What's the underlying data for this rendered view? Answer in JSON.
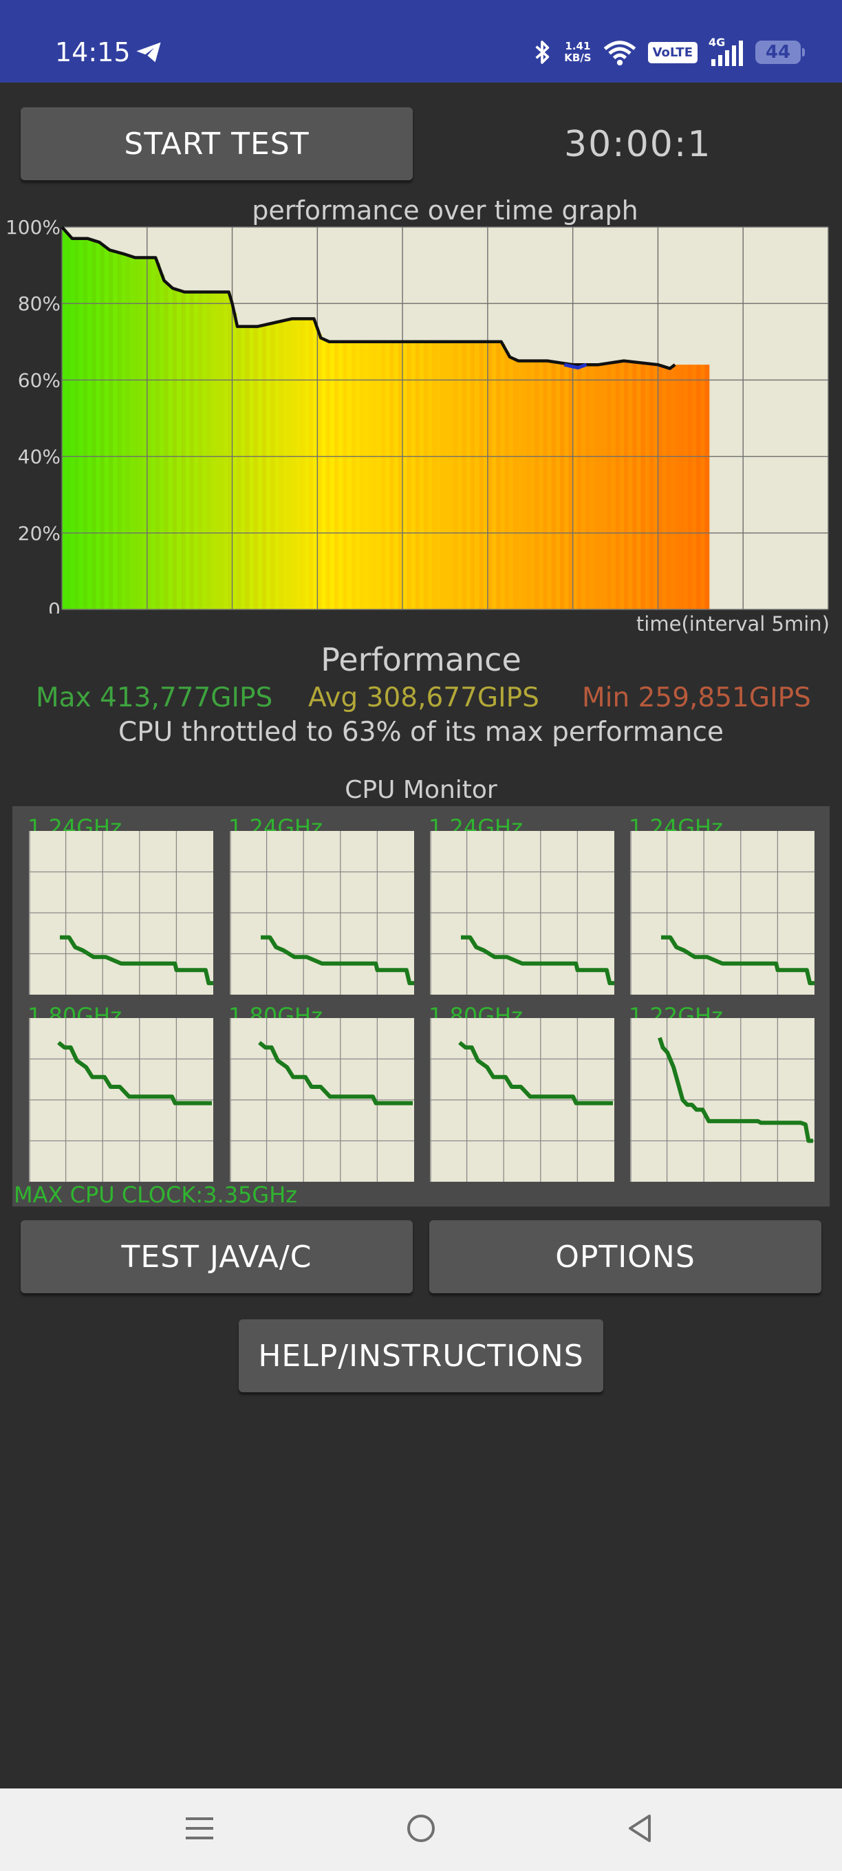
{
  "status_bar": {
    "time": "14:15",
    "net_speed_value": "1.41",
    "net_speed_unit": "KB/S",
    "volte": "VoLTE",
    "network": "4G",
    "battery": "44",
    "icons": [
      "telegram-icon",
      "bluetooth-icon",
      "wifi-icon",
      "signal-icon",
      "battery-icon"
    ]
  },
  "controls": {
    "start_test": "START TEST",
    "timer": "30:00:1",
    "test_java_c": "TEST JAVA/C",
    "options": "OPTIONS",
    "help": "HELP/INSTRUCTIONS"
  },
  "graph": {
    "title": "performance over time graph",
    "x_label": "time(interval 5min)",
    "y_ticks": [
      "100%",
      "80%",
      "60%",
      "40%",
      "20%",
      "0"
    ]
  },
  "chart_data": {
    "type": "area",
    "title": "performance over time graph",
    "xlabel": "time(interval 5min)",
    "ylabel": "",
    "ylim": [
      0,
      100
    ],
    "x_unit": "minutes",
    "xlim": [
      0,
      38
    ],
    "grid": true,
    "series": [
      {
        "values": [
          [
            0,
            100
          ],
          [
            0.6,
            97
          ],
          [
            1.5,
            97
          ],
          [
            2.2,
            96
          ],
          [
            2.8,
            94
          ],
          [
            3.6,
            93
          ],
          [
            4.3,
            92
          ],
          [
            5.5,
            92
          ],
          [
            6.0,
            86
          ],
          [
            6.5,
            84
          ],
          [
            7.2,
            83
          ],
          [
            8.2,
            83
          ],
          [
            9.8,
            83
          ],
          [
            10.0,
            80
          ],
          [
            10.3,
            74
          ],
          [
            11.5,
            74
          ],
          [
            12.5,
            75
          ],
          [
            13.5,
            76
          ],
          [
            14.8,
            76
          ],
          [
            15.2,
            71
          ],
          [
            15.7,
            70
          ],
          [
            17.5,
            70
          ],
          [
            19.5,
            70
          ],
          [
            21.5,
            70
          ],
          [
            24.0,
            70
          ],
          [
            25.8,
            70
          ],
          [
            26.3,
            66
          ],
          [
            26.8,
            65
          ],
          [
            28.5,
            65
          ],
          [
            30.0,
            64
          ],
          [
            31.5,
            64
          ],
          [
            33.0,
            65
          ],
          [
            35.0,
            64
          ],
          [
            35.7,
            63
          ],
          [
            36.0,
            64
          ]
        ]
      }
    ]
  },
  "performance": {
    "title": "Performance",
    "max": "Max 413,777GIPS",
    "avg": "Avg 308,677GIPS",
    "min": "Min 259,851GIPS",
    "throttle": "CPU throttled to 63% of its max performance"
  },
  "cpu_monitor": {
    "title": "CPU Monitor",
    "max_clock": "MAX CPU CLOCK:3.35GHz",
    "cores": [
      {
        "freq": "1.24GHz",
        "profile": "a"
      },
      {
        "freq": "1.24GHz",
        "profile": "a"
      },
      {
        "freq": "1.24GHz",
        "profile": "a"
      },
      {
        "freq": "1.24GHz",
        "profile": "a"
      },
      {
        "freq": "1.80GHz",
        "profile": "b"
      },
      {
        "freq": "1.80GHz",
        "profile": "b"
      },
      {
        "freq": "1.80GHz",
        "profile": "b"
      },
      {
        "freq": "1.22GHz",
        "profile": "c"
      }
    ],
    "profiles": {
      "a": [
        [
          0,
          65
        ],
        [
          6,
          65
        ],
        [
          10,
          71
        ],
        [
          15,
          73
        ],
        [
          22,
          77
        ],
        [
          30,
          77
        ],
        [
          40,
          81
        ],
        [
          75,
          81
        ],
        [
          76,
          85
        ],
        [
          95,
          85
        ],
        [
          97,
          93
        ],
        [
          100,
          93
        ]
      ],
      "b": [
        [
          0,
          15
        ],
        [
          4,
          18
        ],
        [
          8,
          18
        ],
        [
          12,
          26
        ],
        [
          18,
          30
        ],
        [
          22,
          36
        ],
        [
          30,
          36
        ],
        [
          34,
          42
        ],
        [
          40,
          42
        ],
        [
          46,
          48
        ],
        [
          60,
          48
        ],
        [
          74,
          48
        ],
        [
          76,
          52
        ],
        [
          100,
          52
        ]
      ],
      "c": [
        [
          0,
          12
        ],
        [
          2,
          18
        ],
        [
          5,
          21
        ],
        [
          9,
          30
        ],
        [
          12,
          40
        ],
        [
          15,
          50
        ],
        [
          18,
          53
        ],
        [
          21,
          53
        ],
        [
          24,
          56
        ],
        [
          28,
          56
        ],
        [
          32,
          63
        ],
        [
          34,
          63
        ],
        [
          40,
          63
        ],
        [
          60,
          63
        ],
        [
          64,
          63
        ],
        [
          66,
          64
        ],
        [
          92,
          64
        ],
        [
          95,
          65
        ],
        [
          97,
          75
        ],
        [
          100,
          75
        ]
      ]
    }
  },
  "nav_bar": {
    "icons": [
      "menu-icon",
      "home-icon",
      "back-icon"
    ]
  }
}
